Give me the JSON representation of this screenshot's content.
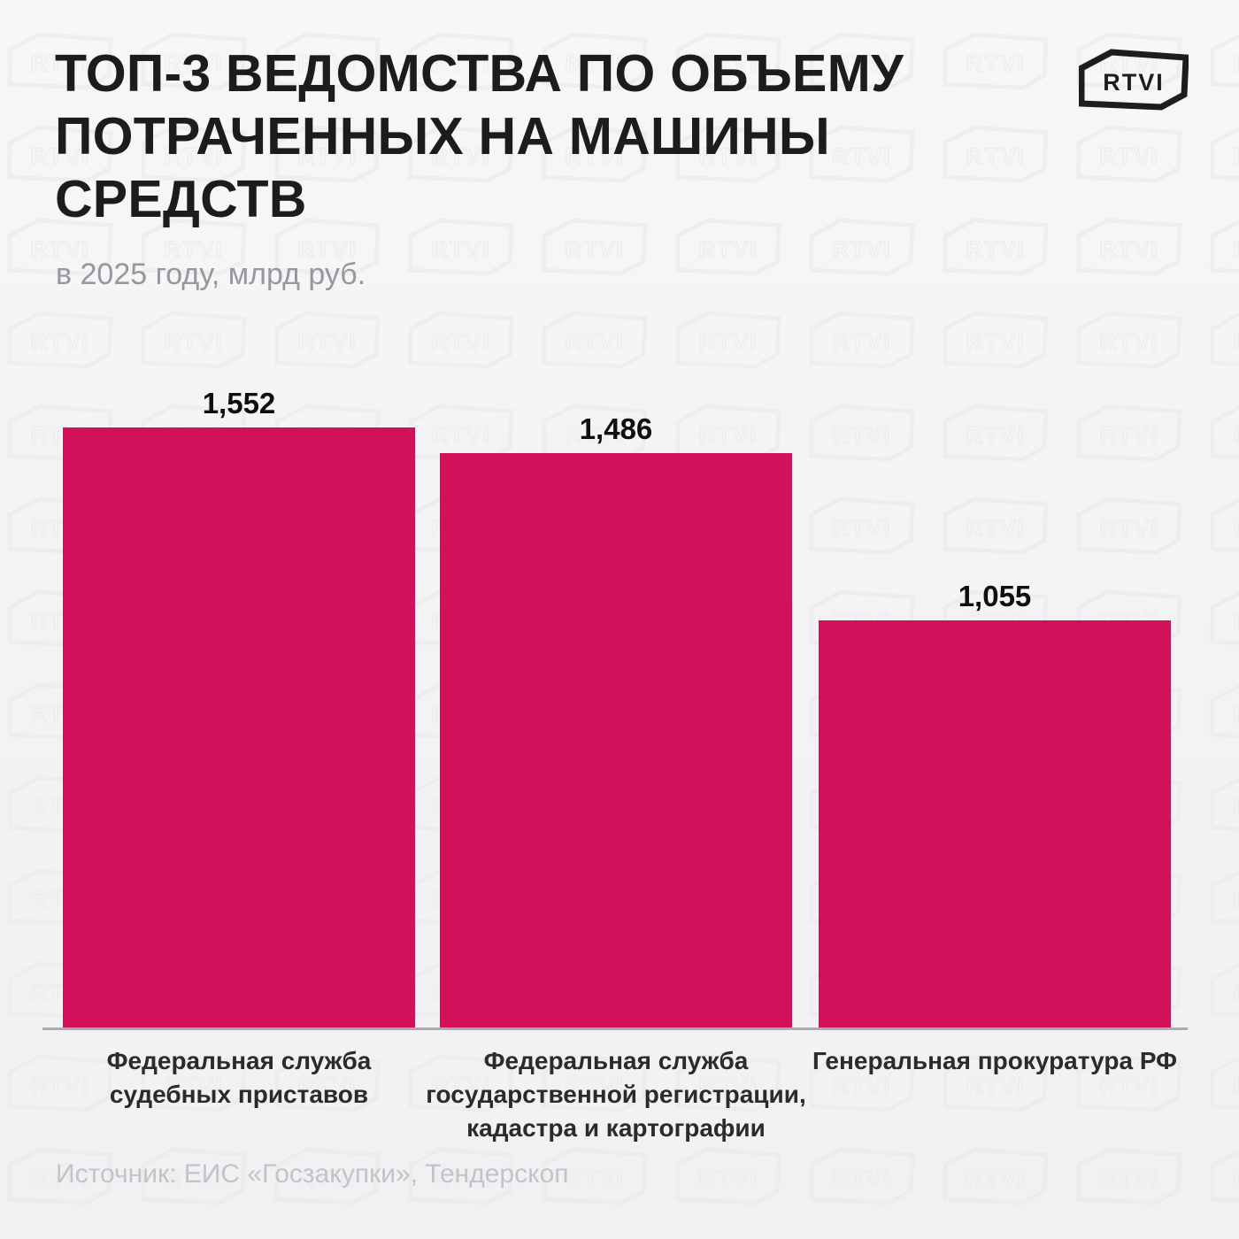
{
  "brand": {
    "logo_text": "RTVI"
  },
  "header": {
    "title_lines": [
      "ТОП-3 ВЕДОМСТВА ПО ОБЪЕМУ",
      "ПОТРАЧЕННЫХ НА МАШИНЫ",
      "СРЕДСТВ"
    ],
    "subtitle": "в 2025 году, млрд руб."
  },
  "chart_data": {
    "type": "bar",
    "title": "ТОП-3 ведомства по объему потраченных на машины средств",
    "subtitle": "в 2025 году, млрд руб.",
    "unit": "млрд руб.",
    "categories": [
      "Федеральная служба судебных приставов",
      "Федеральная служба государственной регистрации, кадастра и картографии",
      "Генеральная прокуратура РФ"
    ],
    "values": [
      1.552,
      1.486,
      1.055
    ],
    "value_labels": [
      "1,552",
      "1,486",
      "1,055"
    ],
    "ylim": [
      0,
      1.6
    ],
    "grid": false,
    "legend": false,
    "bar_color": "#d3105a"
  },
  "footer": {
    "source": "Источник: ЕИС «Госзакупки», Тендерскоп"
  },
  "icons": {
    "logo": "rtvi-badge-icon",
    "watermark": "rtvi-badge-outline-icon"
  },
  "colors": {
    "background": "#f4f4f6",
    "title": "#1c1c1e",
    "subtitle": "#97979d",
    "bar": "#d3105a",
    "value_label": "#0f0f11",
    "category_label": "#2b2b2d",
    "axis_line": "#ababaf",
    "source": "#c3c3c8",
    "watermark_stroke": "#e9e9ec"
  }
}
